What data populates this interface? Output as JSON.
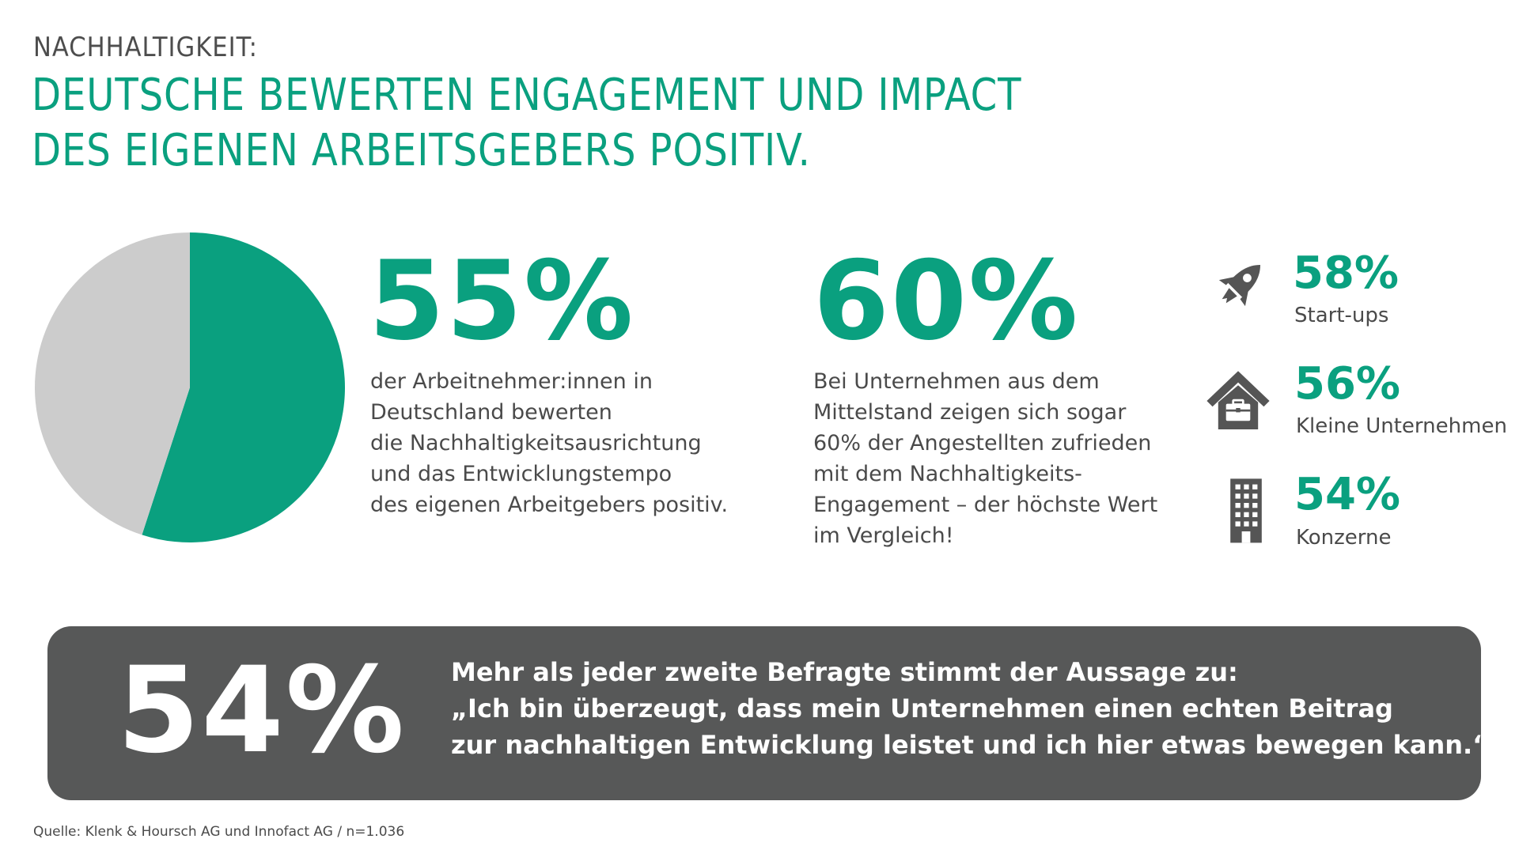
{
  "header": {
    "kicker": "NACHHALTIGKEIT:",
    "headline": [
      "DEUTSCHE BEWERTEN ENGAGEMENT UND IMPACT",
      "DES EIGENEN ARBEITSGEBERS POSITIV."
    ]
  },
  "chart_data": {
    "type": "pie",
    "title": "",
    "slices": [
      {
        "label": "positiv",
        "value": 55,
        "color": "#0aa07f"
      },
      {
        "label": "",
        "value": 45,
        "color": "#cccccc"
      }
    ]
  },
  "main_stat": {
    "value": "55%",
    "lines": [
      "der Arbeitnehmer:innen in",
      "Deutschland bewerten",
      "die Nachhaltigkeitsausrichtung",
      "und das Entwicklungstempo",
      "des eigenen Arbeitgebers positiv."
    ]
  },
  "mittelstand": {
    "value": "60%",
    "lines": [
      "Bei Unternehmen aus dem",
      "Mittelstand zeigen sich sogar",
      "60% der Angestellten zufrieden",
      "mit dem Nachhaltigkeits-",
      "Engagement – der höchste Wert",
      "im Vergleich!"
    ]
  },
  "segments": [
    {
      "value": "58%",
      "label": "Start-ups",
      "icon": "rocket-icon"
    },
    {
      "value": "56%",
      "label": "Kleine Unternehmen",
      "icon": "house-briefcase-icon"
    },
    {
      "value": "54%",
      "label": "Konzerne",
      "icon": "building-icon"
    }
  ],
  "banner": {
    "value": "54%",
    "lines": [
      "Mehr als jeder zweite Befragte stimmt der Aussage zu:",
      "„Ich bin überzeugt, dass mein Unternehmen einen echten Beitrag",
      "zur nachhaltigen Entwicklung leistet und ich hier etwas bewegen kann.“"
    ]
  },
  "source": "Quelle: Klenk & Hoursch AG und Innofact AG / n=1.036",
  "colors": {
    "accent": "#0aa07f",
    "grey_slice": "#cccccc",
    "banner_bg": "#575858",
    "text": "#4a4a4a"
  }
}
